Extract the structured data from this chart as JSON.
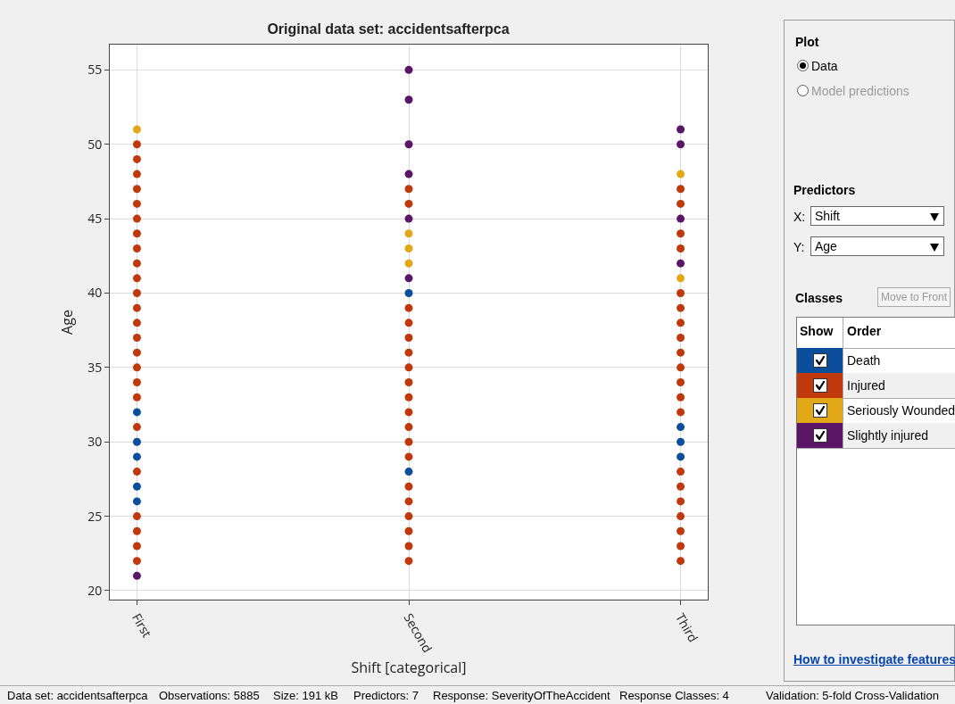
{
  "chart_data": {
    "type": "scatter",
    "title": "Original data set: accidentsafterpca",
    "xlabel": "Shift [categorical]",
    "ylabel": "Age",
    "categories": [
      "First",
      "Second",
      "Third"
    ],
    "series": [
      {
        "name": "Death",
        "color": "#0b4f9c",
        "x": [
          "First",
          "First",
          "First",
          "First",
          "First",
          "Second",
          "Second",
          "Third",
          "Third",
          "Third"
        ],
        "values": [
          32,
          30,
          29,
          27,
          26,
          40,
          28,
          31,
          30,
          29
        ]
      },
      {
        "name": "Injured",
        "color": "#c0390c",
        "x": [
          "First",
          "First",
          "First",
          "First",
          "First",
          "First",
          "First",
          "First",
          "First",
          "First",
          "First",
          "First",
          "First",
          "First",
          "First",
          "First",
          "First",
          "First",
          "First",
          "First",
          "First",
          "First",
          "First",
          "First",
          "Second",
          "Second",
          "Second",
          "Second",
          "Second",
          "Second",
          "Second",
          "Second",
          "Second",
          "Second",
          "Second",
          "Second",
          "Second",
          "Second",
          "Second",
          "Second",
          "Second",
          "Second",
          "Second",
          "Third",
          "Third",
          "Third",
          "Third",
          "Third",
          "Third",
          "Third",
          "Third",
          "Third",
          "Third",
          "Third",
          "Third",
          "Third",
          "Third",
          "Third",
          "Third",
          "Third",
          "Third",
          "Third",
          "Third"
        ],
        "values": [
          50,
          49,
          48,
          47,
          46,
          45,
          44,
          43,
          42,
          41,
          40,
          39,
          38,
          37,
          36,
          35,
          34,
          33,
          31,
          28,
          25,
          24,
          23,
          22,
          47,
          46,
          39,
          38,
          37,
          36,
          35,
          34,
          33,
          32,
          31,
          30,
          29,
          27,
          26,
          25,
          24,
          23,
          22,
          47,
          46,
          44,
          43,
          40,
          39,
          38,
          37,
          36,
          35,
          34,
          33,
          32,
          28,
          27,
          26,
          25,
          24,
          23,
          22
        ]
      },
      {
        "name": "Seriously Wounded",
        "color": "#e3a817",
        "x": [
          "First",
          "Second",
          "Second",
          "Second",
          "Third",
          "Third"
        ],
        "values": [
          51,
          44,
          43,
          42,
          48,
          41
        ]
      },
      {
        "name": "Slightly injured",
        "color": "#5a1566",
        "x": [
          "First",
          "Second",
          "Second",
          "Second",
          "Second",
          "Second",
          "Second",
          "Third",
          "Third",
          "Third",
          "Third"
        ],
        "values": [
          21,
          55,
          53,
          50,
          48,
          45,
          41,
          51,
          50,
          45,
          42
        ]
      }
    ],
    "ylim": [
      19.4,
      56.7
    ],
    "yticks": [
      20,
      25,
      30,
      35,
      40,
      45,
      50,
      55
    ],
    "grid": true,
    "marker": "circle",
    "legend": "right",
    "annotations": [
      "Plot",
      "Data",
      "Model predictions",
      "Predictors",
      "X:",
      "Shift",
      "Y:",
      "Age",
      "Classes",
      "Move to Front",
      "Show",
      "Order",
      "How to investigate features",
      "Data set: accidentsafterpca",
      "Observations: 5885",
      "Size: 191 kB",
      "Predictors: 7",
      "Response: SeverityOfTheAccident",
      "Response Classes: 4",
      "Validation: 5-fold Cross-Validation"
    ]
  }
}
